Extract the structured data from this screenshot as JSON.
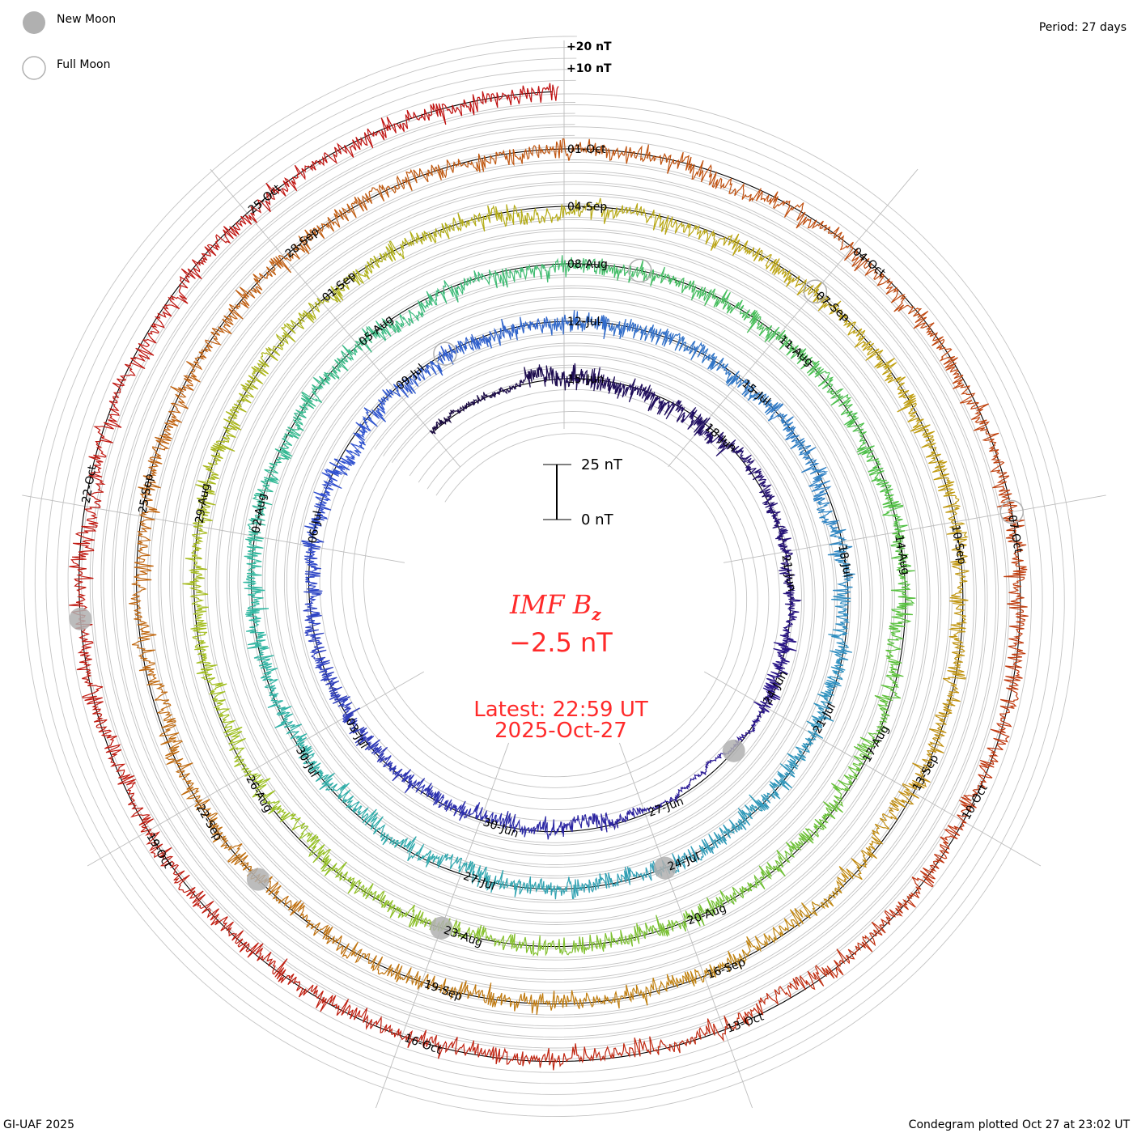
{
  "chart_data": {
    "type": "line",
    "subtype": "spiral condegram",
    "title": "IMF B",
    "title_subscript": "z",
    "current_value": "−2.5 nT",
    "latest_label": "Latest: 22:59 UT",
    "latest_date": "2025-Oct-27",
    "period_label": "Period: 27 days",
    "period_days": 27,
    "start_date": "2025-06-12",
    "end_date": "2025-10-27T22:59",
    "reference_date": "2025-06-15",
    "ylabel": "nT",
    "scale_bar": {
      "top_label": "25 nT",
      "bottom_label": "0 nT",
      "range_nT": [
        0,
        25
      ]
    },
    "offset_labels": [
      "+20 nT",
      "+10 nT"
    ],
    "grid_step_nT": 5,
    "date_labels": [
      "15-Jun",
      "18-Jun",
      "21-Jun",
      "24-Jun",
      "27-Jun",
      "30-Jun",
      "03-Jul",
      "06-Jul",
      "09-Jul",
      "12-Jul",
      "15-Jul",
      "18-Jul",
      "21-Jul",
      "24-Jul",
      "27-Jul",
      "30-Jul",
      "02-Aug",
      "05-Aug",
      "08-Aug",
      "11-Aug",
      "14-Aug",
      "17-Aug",
      "20-Aug",
      "23-Aug",
      "26-Aug",
      "29-Aug",
      "01-Sep",
      "04-Sep",
      "07-Sep",
      "10-Sep",
      "13-Sep",
      "16-Sep",
      "19-Sep",
      "22-Sep",
      "25-Sep",
      "28-Sep",
      "01-Oct",
      "04-Oct",
      "07-Oct",
      "10-Oct",
      "13-Oct",
      "16-Oct",
      "19-Oct",
      "22-Oct",
      "25-Oct"
    ],
    "date_label_step_days": 3,
    "new_moons": [
      "2025-06-25",
      "2025-07-24",
      "2025-08-23",
      "2025-09-21",
      "2025-10-21"
    ],
    "full_moons": [
      "2025-07-10",
      "2025-08-09",
      "2025-09-07",
      "2025-10-07"
    ],
    "legend": {
      "new_moon": "New Moon",
      "full_moon": "Full Moon",
      "placement": "top-left"
    },
    "color_stops": [
      "#1a0a40",
      "#2a1590",
      "#3050d0",
      "#3090c0",
      "#30b8a0",
      "#50c040",
      "#a0c020",
      "#c0a010",
      "#c07010",
      "#c05010",
      "#c02010",
      "#c01010"
    ]
  },
  "footer": {
    "credit": "GI-UAF 2025",
    "plotted": "Condegram plotted Oct 27 at 23:02 UT"
  }
}
